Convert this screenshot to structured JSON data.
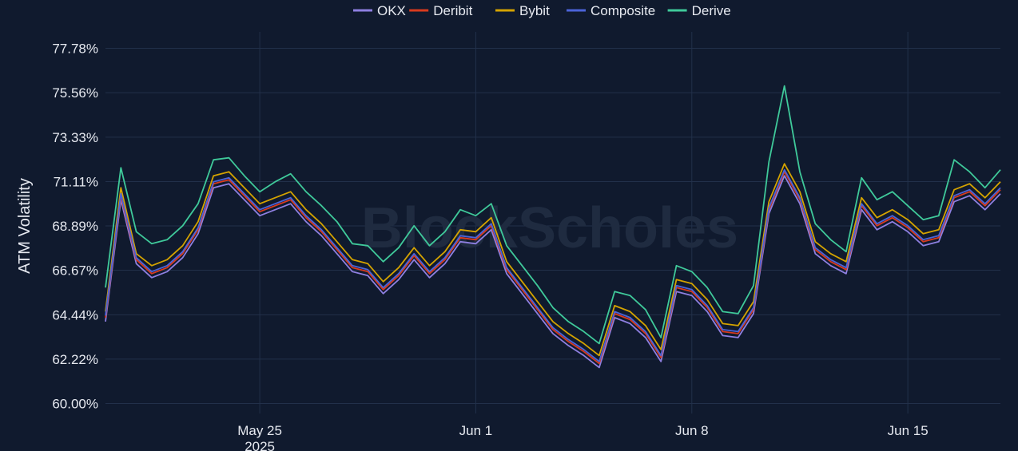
{
  "watermark": "BlockScholes",
  "chart_data": {
    "type": "line",
    "title": "",
    "xlabel": "",
    "ylabel": "ATM Volatility",
    "ylim": [
      59.5,
      78.6
    ],
    "y_ticks": [
      60.0,
      62.22,
      64.44,
      66.67,
      68.89,
      71.11,
      73.33,
      75.56,
      77.78
    ],
    "y_tick_labels": [
      "60.00%",
      "62.22%",
      "64.44%",
      "66.67%",
      "68.89%",
      "71.11%",
      "73.33%",
      "75.56%",
      "77.78%"
    ],
    "x_range": [
      "2025-05-20",
      "2025-06-18"
    ],
    "x_ticks": [
      "2025-05-25",
      "2025-06-01",
      "2025-06-08",
      "2025-06-15"
    ],
    "x_tick_labels": [
      "May 25",
      "Jun 1",
      "Jun 8",
      "Jun 15"
    ],
    "x_tick_year": "2025",
    "grid": true,
    "legend_position": "top-center",
    "x": [
      "2025-05-20",
      "2025-05-20 12:00",
      "2025-05-21",
      "2025-05-21 12:00",
      "2025-05-22",
      "2025-05-22 12:00",
      "2025-05-23",
      "2025-05-23 12:00",
      "2025-05-24",
      "2025-05-24 12:00",
      "2025-05-25",
      "2025-05-25 12:00",
      "2025-05-26",
      "2025-05-26 12:00",
      "2025-05-27",
      "2025-05-27 12:00",
      "2025-05-28",
      "2025-05-28 12:00",
      "2025-05-29",
      "2025-05-29 12:00",
      "2025-05-30",
      "2025-05-30 12:00",
      "2025-05-31",
      "2025-05-31 12:00",
      "2025-06-01",
      "2025-06-01 12:00",
      "2025-06-02",
      "2025-06-02 12:00",
      "2025-06-03",
      "2025-06-03 12:00",
      "2025-06-04",
      "2025-06-04 12:00",
      "2025-06-05",
      "2025-06-05 12:00",
      "2025-06-06",
      "2025-06-06 12:00",
      "2025-06-07",
      "2025-06-07 12:00",
      "2025-06-08",
      "2025-06-08 12:00",
      "2025-06-09",
      "2025-06-09 12:00",
      "2025-06-10",
      "2025-06-10 12:00",
      "2025-06-11",
      "2025-06-11 12:00",
      "2025-06-12",
      "2025-06-12 12:00",
      "2025-06-13",
      "2025-06-13 12:00",
      "2025-06-14",
      "2025-06-14 12:00",
      "2025-06-15",
      "2025-06-15 12:00",
      "2025-06-16",
      "2025-06-16 12:00",
      "2025-06-17",
      "2025-06-17 12:00",
      "2025-06-18"
    ],
    "series": [
      {
        "name": "OKX",
        "color": "#8e7fe0",
        "values": [
          64.1,
          70.2,
          67.0,
          66.3,
          66.6,
          67.3,
          68.5,
          70.8,
          71.0,
          70.2,
          69.4,
          69.7,
          70.0,
          69.1,
          68.4,
          67.5,
          66.6,
          66.4,
          65.5,
          66.2,
          67.2,
          66.3,
          67.0,
          68.1,
          68.0,
          68.7,
          66.5,
          65.5,
          64.5,
          63.5,
          62.9,
          62.4,
          61.8,
          64.3,
          64.0,
          63.3,
          62.1,
          65.6,
          65.4,
          64.6,
          63.4,
          63.3,
          64.5,
          69.5,
          71.4,
          70.0,
          67.5,
          66.9,
          66.5,
          69.7,
          68.7,
          69.1,
          68.6,
          67.9,
          68.1,
          70.1,
          70.4,
          69.7,
          70.5
        ]
      },
      {
        "name": "Deribit",
        "color": "#d93a1e",
        "values": [
          64.3,
          70.4,
          67.2,
          66.5,
          66.8,
          67.5,
          68.7,
          71.0,
          71.2,
          70.4,
          69.6,
          69.9,
          70.2,
          69.3,
          68.6,
          67.7,
          66.8,
          66.6,
          65.7,
          66.4,
          67.4,
          66.5,
          67.2,
          68.3,
          68.2,
          68.9,
          66.7,
          65.7,
          64.7,
          63.7,
          63.1,
          62.6,
          62.0,
          64.5,
          64.2,
          63.5,
          62.3,
          65.8,
          65.6,
          64.8,
          63.6,
          63.5,
          64.7,
          69.7,
          71.6,
          70.2,
          67.7,
          67.1,
          66.7,
          69.9,
          68.9,
          69.3,
          68.8,
          68.1,
          68.3,
          70.3,
          70.6,
          69.9,
          70.7
        ]
      },
      {
        "name": "Bybit",
        "color": "#d4a300",
        "values": [
          64.6,
          70.8,
          67.5,
          66.9,
          67.2,
          67.9,
          69.1,
          71.4,
          71.6,
          70.8,
          70.0,
          70.3,
          70.6,
          69.7,
          69.0,
          68.1,
          67.2,
          67.0,
          66.1,
          66.8,
          67.8,
          66.9,
          67.6,
          68.7,
          68.6,
          69.3,
          67.1,
          66.1,
          65.1,
          64.1,
          63.5,
          63.0,
          62.4,
          64.9,
          64.6,
          63.9,
          62.7,
          66.2,
          66.0,
          65.2,
          64.0,
          63.9,
          65.1,
          70.1,
          72.0,
          70.6,
          68.1,
          67.5,
          67.1,
          70.3,
          69.3,
          69.7,
          69.2,
          68.5,
          68.7,
          70.7,
          71.0,
          70.3,
          71.1
        ]
      },
      {
        "name": "Composite",
        "color": "#4b63d8",
        "values": [
          64.4,
          70.5,
          67.3,
          66.6,
          66.9,
          67.6,
          68.8,
          71.1,
          71.3,
          70.5,
          69.7,
          70.0,
          70.3,
          69.4,
          68.7,
          67.8,
          66.9,
          66.7,
          65.8,
          66.5,
          67.5,
          66.6,
          67.3,
          68.4,
          68.3,
          69.0,
          66.8,
          65.8,
          64.8,
          63.8,
          63.2,
          62.7,
          62.1,
          64.6,
          64.3,
          63.6,
          62.4,
          65.9,
          65.7,
          64.9,
          63.7,
          63.6,
          64.8,
          69.8,
          71.7,
          70.3,
          67.8,
          67.2,
          66.8,
          70.0,
          69.0,
          69.4,
          68.9,
          68.2,
          68.4,
          70.4,
          70.7,
          70.0,
          70.8
        ]
      },
      {
        "name": "Derive",
        "color": "#3fc99a",
        "values": [
          65.8,
          71.8,
          68.6,
          68.0,
          68.2,
          68.9,
          70.0,
          72.2,
          72.3,
          71.4,
          70.6,
          71.1,
          71.5,
          70.6,
          69.9,
          69.1,
          68.0,
          67.9,
          67.1,
          67.8,
          68.9,
          67.9,
          68.6,
          69.7,
          69.4,
          70.0,
          67.9,
          66.9,
          65.9,
          64.8,
          64.1,
          63.6,
          63.0,
          65.6,
          65.4,
          64.7,
          63.3,
          66.9,
          66.6,
          65.8,
          64.6,
          64.5,
          65.9,
          72.1,
          75.9,
          71.6,
          69.0,
          68.2,
          67.6,
          71.3,
          70.2,
          70.6,
          69.9,
          69.2,
          69.4,
          72.2,
          71.6,
          70.8,
          71.7
        ]
      }
    ]
  }
}
